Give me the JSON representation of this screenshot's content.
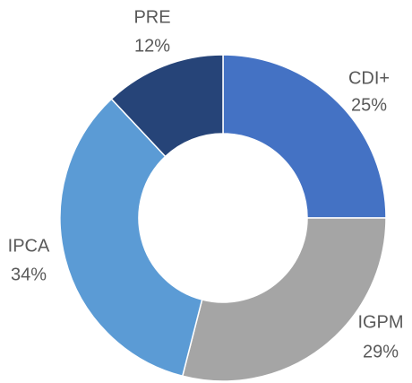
{
  "chart_data": {
    "type": "donut",
    "categories": [
      "CDI+",
      "IGPM",
      "IPCA",
      "PRE"
    ],
    "values": [
      25,
      29,
      34,
      12
    ],
    "value_labels": [
      "25%",
      "29%",
      "34%",
      "12%"
    ],
    "colors": [
      "#4472c4",
      "#a5a5a5",
      "#5b9bd5",
      "#264478"
    ]
  }
}
